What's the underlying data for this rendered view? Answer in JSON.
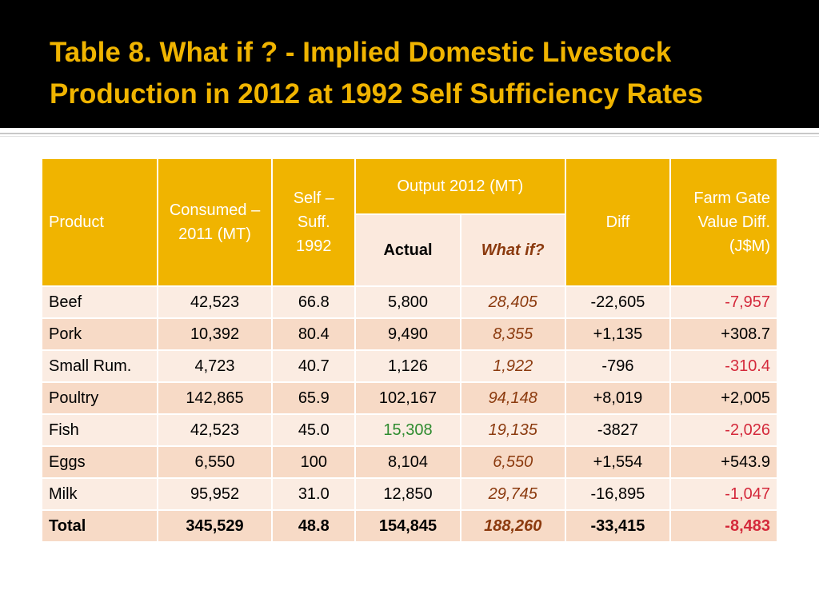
{
  "slide": {
    "title": "Table 8. What if ? - Implied Domestic Livestock Production in 2012 at 1992 Self Sufficiency Rates"
  },
  "table": {
    "headers": {
      "product": "Product",
      "consumed": "Consumed – 2011 (MT)",
      "self_suff": "Self – Suff. 1992",
      "output": "Output 2012 (MT)",
      "actual": "Actual",
      "whatif": "What if?",
      "diff": "Diff",
      "farm_gate": "Farm Gate Value Diff. (J$M)"
    },
    "rows": [
      {
        "product": "Beef",
        "consumed": "42,523",
        "self_suff": "66.8",
        "actual": "5,800",
        "whatif": "28,405",
        "diff": "-22,605",
        "farm_gate": "-7,957"
      },
      {
        "product": "Pork",
        "consumed": "10,392",
        "self_suff": "80.4",
        "actual": "9,490",
        "whatif": "8,355",
        "diff": "+1,135",
        "farm_gate": "+308.7"
      },
      {
        "product": "Small Rum.",
        "consumed": "4,723",
        "self_suff": "40.7",
        "actual": "1,126",
        "whatif": "1,922",
        "diff": "-796",
        "farm_gate": "-310.4"
      },
      {
        "product": "Poultry",
        "consumed": "142,865",
        "self_suff": "65.9",
        "actual": "102,167",
        "whatif": "94,148",
        "diff": "+8,019",
        "farm_gate": "+2,005"
      },
      {
        "product": "Fish",
        "consumed": "42,523",
        "self_suff": "45.0",
        "actual": "15,308",
        "whatif": "19,135",
        "diff": "-3827",
        "farm_gate": "-2,026"
      },
      {
        "product": "Eggs",
        "consumed": "6,550",
        "self_suff": "100",
        "actual": "8,104",
        "whatif": "6,550",
        "diff": "+1,554",
        "farm_gate": "+543.9"
      },
      {
        "product": "Milk",
        "consumed": "95,952",
        "self_suff": "31.0",
        "actual": "12,850",
        "whatif": "29,745",
        "diff": "-16,895",
        "farm_gate": "-1,047"
      }
    ],
    "total": {
      "product": "Total",
      "consumed": "345,529",
      "self_suff": "48.8",
      "actual": "154,845",
      "whatif": "188,260",
      "diff": "-33,415",
      "farm_gate": "-8,483"
    }
  },
  "colors": {
    "title": "#f0b400",
    "header_bg": "#f0b400",
    "row_light": "#fbece2",
    "row_dark": "#f7dac6",
    "whatif_text": "#8b3a0e",
    "negative_text": "#d4293b",
    "highlight_green": "#2e8b2e"
  }
}
